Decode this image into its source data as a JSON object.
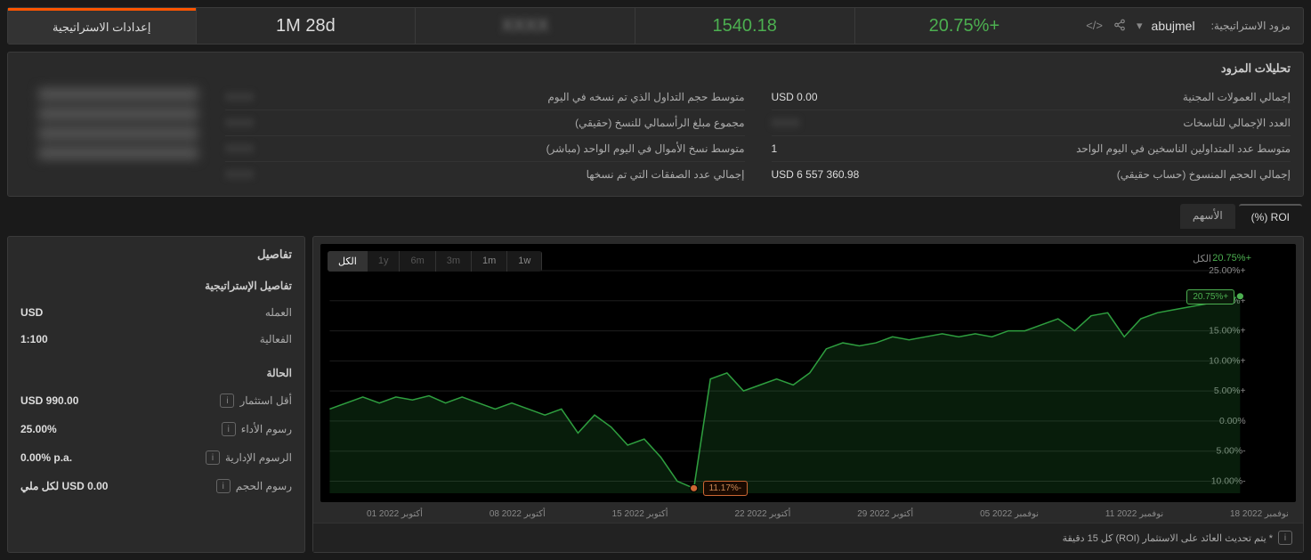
{
  "header": {
    "provider_label": "مزود الاستراتيجية:",
    "user_name": "abujmel",
    "roi_pct": "+20.75%",
    "value": "1540.18",
    "duration": "1M 28d",
    "settings_btn": "إعدادات الاستراتيجية"
  },
  "analytics": {
    "title": "تحليلات المزود",
    "left_col": [
      {
        "label": "إجمالي العمولات المجنية",
        "value": "USD 0.00"
      },
      {
        "label": "العدد الإجمالي للناسخات",
        "value": ""
      },
      {
        "label": "متوسط عدد المتداولين الناسخين في اليوم الواحد",
        "value": "1"
      },
      {
        "label": "إجمالي الحجم المنسوخ (حساب حقيقي)",
        "value": "USD 6 557 360.98"
      }
    ],
    "right_col": [
      {
        "label": "متوسط حجم التداول الذي تم نسخه في اليوم",
        "value": ""
      },
      {
        "label": "مجموع مبلغ الرأسمالي للنسخ (حقيقي)",
        "value": ""
      },
      {
        "label": "متوسط نسخ الأموال في اليوم الواحد (مباشر)",
        "value": ""
      },
      {
        "label": "إجمالي عدد الصفقات التي تم نسخها",
        "value": ""
      }
    ]
  },
  "tabs": {
    "roi": "ROI (%)",
    "equity": "الأسهم"
  },
  "chart": {
    "time_buttons": [
      "1w",
      "1m",
      "3m",
      "6m",
      "1y",
      "الكل"
    ],
    "active_idx": 5,
    "header_pct": "+20.75%",
    "header_all": "الكل",
    "y_ticks": [
      "+25.00%",
      "+20.00%",
      "+15.00%",
      "+10.00%",
      "+5.00%",
      "0.00%",
      "-5.00%",
      "-10.00%"
    ],
    "x_labels": [
      "أكتوبر 2022 01",
      "أكتوبر 2022 08",
      "أكتوبر 2022 15",
      "أكتوبر 2022 22",
      "أكتوبر 2022 29",
      "نوفمبر 2022 05",
      "نوفمبر 2022 11",
      "نوفمبر 2022 18"
    ],
    "min_label": "-11.17%",
    "max_label": "+20.75%",
    "line_color": "#2e9e3f",
    "area_color": "rgba(46,158,63,0.18)",
    "grid_color": "#1e1e1e",
    "series_y": [
      2,
      3,
      4,
      3,
      4,
      3.5,
      4.2,
      3,
      4,
      3,
      2,
      3,
      2,
      1,
      2,
      -2,
      1,
      -1,
      -4,
      -3,
      -6,
      -10,
      -11.17,
      7,
      8,
      5,
      6,
      7,
      6,
      8,
      12,
      13,
      12.5,
      13,
      14,
      13.5,
      14,
      14.5,
      14,
      14.5,
      14,
      15,
      15,
      16,
      17,
      15,
      17.5,
      18,
      14,
      17,
      18,
      18.5,
      19,
      19.5,
      20,
      20.75
    ],
    "ylim": [
      -12,
      25
    ]
  },
  "footer": "* يتم تحديث العائد على الاستثمار (ROI) كل 15 دقيقة",
  "details": {
    "title": "تفاصيل",
    "strategy_title": "تفاصيل الإستراتيجية",
    "currency_label": "العمله",
    "currency_value": "USD",
    "leverage_label": "الفعالية",
    "leverage_value": "1:100",
    "state_title": "الحالة",
    "min_invest_label": "أقل استثمار",
    "min_invest_value": "USD 990.00",
    "perf_fee_label": "رسوم الأداء",
    "perf_fee_value": "25.00%",
    "mgmt_fee_label": "الرسوم الإدارية",
    "mgmt_fee_value": "0.00% p.a.",
    "vol_fee_label": "رسوم الحجم",
    "vol_fee_value": "لكل ملي USD 0.00"
  }
}
